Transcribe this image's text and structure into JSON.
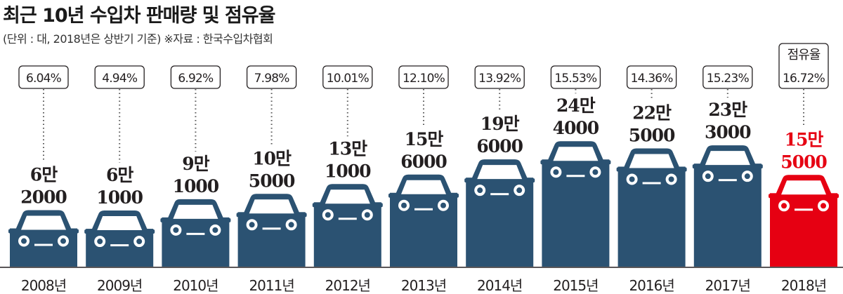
{
  "title": "최근 10년 수입차 판매량 및 점유율",
  "subtitle": "(단위 : 대, 2018년은 상반기 기준)  ※자료 : 한국수입차협회",
  "chart_data": {
    "type": "bar",
    "title": "최근 10년 수입차 판매량 및 점유율",
    "xlabel": "",
    "ylabel": "",
    "categories": [
      "2008년",
      "2009년",
      "2010년",
      "2011년",
      "2012년",
      "2013년",
      "2014년",
      "2015년",
      "2016년",
      "2017년",
      "2018년"
    ],
    "series": [
      {
        "values": [
          62000,
          61000,
          91000,
          105000,
          131000,
          156000,
          196000,
          244000,
          225000,
          233000,
          155000
        ],
        "labels": [
          [
            "6만",
            "2000"
          ],
          [
            "6만",
            "1000"
          ],
          [
            "9만",
            "1000"
          ],
          [
            "10만",
            "5000"
          ],
          [
            "13만",
            "1000"
          ],
          [
            "15만",
            "6000"
          ],
          [
            "19만",
            "6000"
          ],
          [
            "24만",
            "4000"
          ],
          [
            "22만",
            "5000"
          ],
          [
            "23만",
            "3000"
          ],
          [
            "15만",
            "5000"
          ]
        ]
      }
    ],
    "share_label": "점유율",
    "share": [
      "6.04%",
      "4.94%",
      "6.92%",
      "7.98%",
      "10.01%",
      "12.10%",
      "13.92%",
      "15.53%",
      "14.36%",
      "15.23%",
      "16.72%"
    ],
    "colors": {
      "bar": "#2b5272",
      "highlight": "#e60012",
      "text": "#231f20"
    },
    "highlight_index": 10
  }
}
